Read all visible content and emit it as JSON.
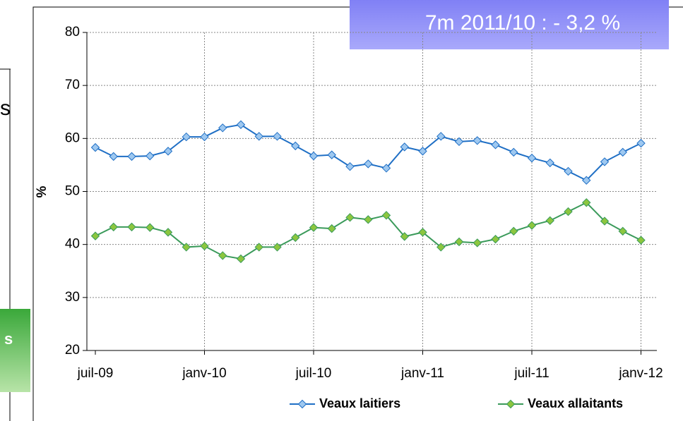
{
  "chart_data": {
    "type": "line",
    "annotation": "7m 2011/10 : - 3,2 %",
    "ylabel": "%",
    "categories": [
      "juil-09",
      null,
      null,
      null,
      null,
      null,
      "janv-10",
      null,
      null,
      null,
      null,
      null,
      "juil-10",
      null,
      null,
      null,
      null,
      null,
      "janv-11",
      null,
      null,
      null,
      null,
      null,
      "juil-11",
      null,
      null,
      null,
      null,
      null,
      "janv-12"
    ],
    "series": [
      {
        "name": "Veaux laitiers",
        "color": "#1f6fc5",
        "marker": "#9ec8f0",
        "values": [
          58.3,
          56.6,
          56.6,
          56.7,
          57.6,
          60.3,
          60.3,
          62.0,
          62.6,
          60.4,
          60.4,
          58.6,
          56.7,
          56.9,
          54.7,
          55.2,
          54.4,
          58.4,
          57.6,
          60.4,
          59.4,
          59.6,
          58.8,
          57.4,
          56.3,
          55.4,
          53.8,
          52.1,
          55.6,
          57.4,
          59.1
        ]
      },
      {
        "name": "Veaux allaitants",
        "color": "#3a9a5a",
        "marker": "#8cc63f",
        "values": [
          41.6,
          43.3,
          43.3,
          43.2,
          42.3,
          39.5,
          39.7,
          37.9,
          37.3,
          39.5,
          39.5,
          41.3,
          43.2,
          43.0,
          45.1,
          44.7,
          45.5,
          41.5,
          42.3,
          39.5,
          40.5,
          40.3,
          41.0,
          42.5,
          43.6,
          44.5,
          46.2,
          47.9,
          44.4,
          42.5,
          40.8
        ]
      }
    ],
    "ylim": [
      20,
      80
    ],
    "yticks": [
      20,
      30,
      40,
      50,
      60,
      70,
      80
    ],
    "grid": true
  },
  "fragments": [
    "s",
    "s"
  ]
}
